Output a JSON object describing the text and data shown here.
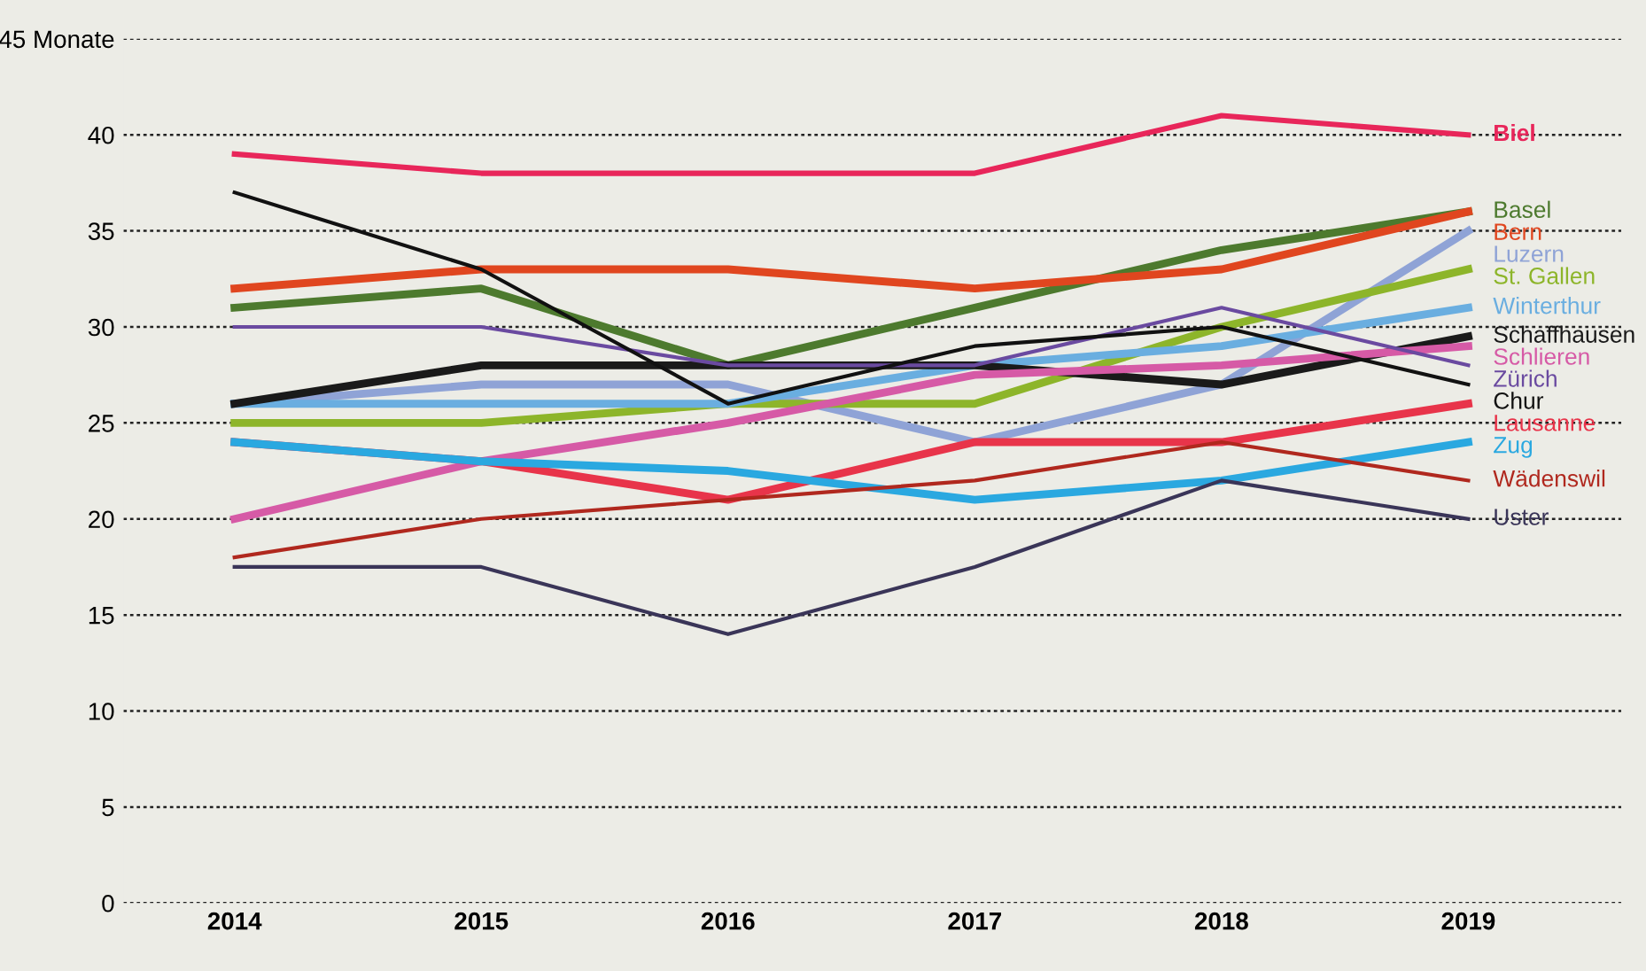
{
  "chart_data": {
    "type": "line",
    "categories": [
      "2014",
      "2015",
      "2016",
      "2017",
      "2018",
      "2019"
    ],
    "series": [
      {
        "name": "Biel",
        "color": "#e8265a",
        "values": [
          39,
          38,
          38,
          38,
          41,
          40
        ]
      },
      {
        "name": "Basel",
        "color": "#4d7a2e",
        "values": [
          31,
          32,
          28,
          31,
          34,
          36
        ]
      },
      {
        "name": "Bern",
        "color": "#e0461f",
        "values": [
          32,
          33,
          33,
          32,
          33,
          36
        ]
      },
      {
        "name": "Luzern",
        "color": "#8fa3d6",
        "values": [
          26,
          27,
          27,
          24,
          27,
          35
        ]
      },
      {
        "name": "St. Gallen",
        "color": "#8db52a",
        "values": [
          25,
          25,
          26,
          26,
          30,
          33
        ]
      },
      {
        "name": "Winterthur",
        "color": "#6aaee0",
        "values": [
          26,
          26,
          26,
          28,
          29,
          31
        ]
      },
      {
        "name": "Schaffhausen",
        "color": "#1a1a1a",
        "values": [
          26,
          28,
          28,
          28,
          27,
          29.5
        ]
      },
      {
        "name": "Schlieren",
        "color": "#d65aa6",
        "values": [
          20,
          23,
          25,
          27.5,
          28,
          29
        ]
      },
      {
        "name": "Zürich",
        "color": "#6a4aa0",
        "values": [
          30,
          30,
          28,
          28,
          31,
          28
        ]
      },
      {
        "name": "Chur",
        "color": "#111111",
        "values": [
          37,
          33,
          26,
          29,
          30,
          27
        ]
      },
      {
        "name": "Lausanne",
        "color": "#e8344a",
        "values": [
          24,
          23,
          21,
          24,
          24,
          26
        ]
      },
      {
        "name": "Zug",
        "color": "#2aa8e0",
        "values": [
          24,
          23,
          22.5,
          21,
          22,
          24
        ]
      },
      {
        "name": "Wädenswil",
        "color": "#b0281e",
        "values": [
          18,
          20,
          21,
          22,
          24,
          22
        ]
      },
      {
        "name": "Uster",
        "color": "#3a3558",
        "values": [
          17.5,
          17.5,
          14,
          17.5,
          22,
          20
        ]
      }
    ],
    "ylim": [
      0,
      45
    ],
    "yticks": [
      0,
      5,
      10,
      15,
      20,
      25,
      30,
      35,
      40,
      {
        "value": 45,
        "label": "45 Monate"
      }
    ],
    "grid": "y",
    "legend": false,
    "marker": "none",
    "line_style": "solid"
  }
}
